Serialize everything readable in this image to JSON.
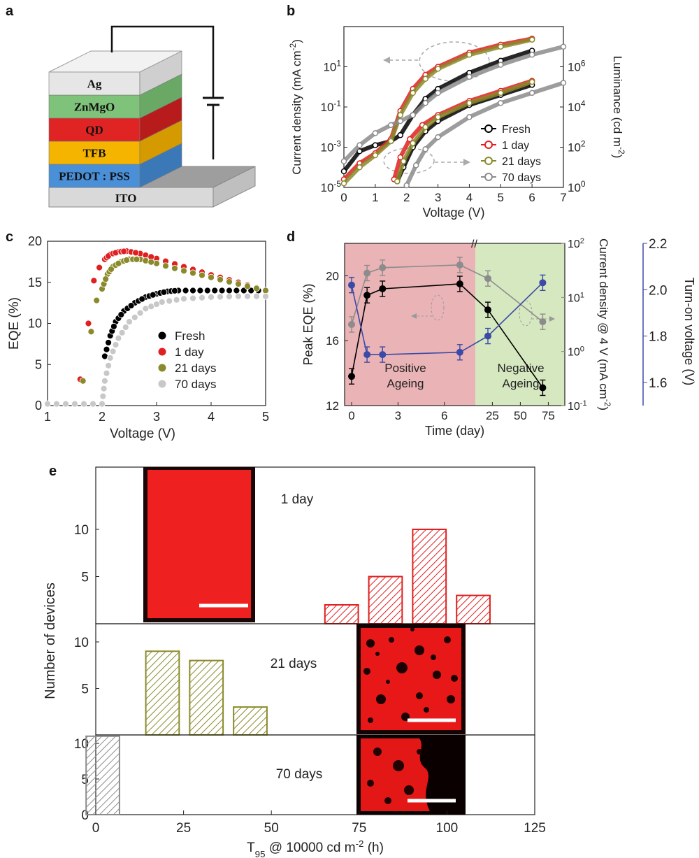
{
  "panels": {
    "a": "a",
    "b": "b",
    "c": "c",
    "d": "d",
    "e": "e"
  },
  "device_stack": {
    "layers": [
      {
        "name": "Ag",
        "color": "#e6e6e6",
        "side": "#cfcfcf",
        "top": "#f2f2f2"
      },
      {
        "name": "ZnMgO",
        "color": "#7fc27a",
        "side": "#6aa866"
      },
      {
        "name": "QD",
        "color": "#e02424",
        "side": "#b81b1b"
      },
      {
        "name": "TFB",
        "color": "#f5b400",
        "side": "#d49a00"
      },
      {
        "name": "PEDOT : PSS",
        "color": "#4a90d9",
        "side": "#3b78b8"
      },
      {
        "name": "ITO",
        "color": "#d9d9d9",
        "side": "#bfbfbf",
        "top": "#9e9e9e"
      }
    ]
  },
  "chart_data": [
    {
      "panel": "b",
      "type": "line",
      "xlabel": "Voltage (V)",
      "ylabel": "Current density (mA cm-2)",
      "y2label": "Luminance (cd m-2)",
      "xlim": [
        0,
        7
      ],
      "xticks": [
        "0",
        "1",
        "2",
        "3",
        "4",
        "5",
        "6",
        "7"
      ],
      "ylim_log10": [
        -5,
        3
      ],
      "yticks": [
        "10-5",
        "10-3",
        "10-1",
        "101"
      ],
      "y2ticks": [
        "100",
        "102",
        "104",
        "106"
      ],
      "colors": {
        "Fresh": "#000000",
        "1 day": "#e02020",
        "21 days": "#8a8a2a",
        "70 days": "#8c8c8c"
      },
      "series": [
        {
          "name": "Fresh",
          "kind": "current",
          "x": [
            0,
            0.5,
            1,
            1.5,
            1.8,
            2.2,
            2.6,
            3,
            4,
            5,
            6
          ],
          "log10y": [
            -4.2,
            -3.2,
            -2.9,
            -2.7,
            -2.4,
            -1.4,
            -0.6,
            -0.1,
            0.7,
            1.3,
            1.8
          ]
        },
        {
          "name": "1 day",
          "kind": "current",
          "x": [
            0,
            0.5,
            1,
            1.5,
            1.8,
            2.2,
            2.6,
            3,
            4,
            5,
            6
          ],
          "log10y": [
            -4.6,
            -3.8,
            -3.3,
            -2.6,
            -1.2,
            -0.1,
            0.6,
            1.0,
            1.7,
            2.1,
            2.4
          ]
        },
        {
          "name": "21 days",
          "kind": "current",
          "x": [
            0,
            0.5,
            1,
            1.5,
            1.8,
            2.2,
            2.6,
            3,
            4,
            5,
            6
          ],
          "log10y": [
            -4.8,
            -4.0,
            -3.4,
            -2.7,
            -1.4,
            -0.3,
            0.4,
            0.9,
            1.6,
            2.0,
            2.35
          ]
        },
        {
          "name": "70 days",
          "kind": "current",
          "x": [
            0,
            0.5,
            1,
            1.5,
            1.8,
            2.2,
            2.6,
            3,
            4,
            5,
            6,
            7
          ],
          "log10y": [
            -3.7,
            -2.9,
            -2.3,
            -1.9,
            -1.7,
            -1.4,
            -0.8,
            -0.3,
            0.5,
            1.1,
            1.6,
            2.0
          ]
        },
        {
          "name": "Fresh",
          "kind": "luminance",
          "x": [
            1.7,
            1.9,
            2.2,
            2.6,
            3,
            4,
            5,
            6
          ],
          "log10y": [
            -4.7,
            -4.0,
            -3.0,
            -2.2,
            -1.7,
            -0.9,
            -0.4,
            0.1
          ]
        },
        {
          "name": "1 day",
          "kind": "luminance",
          "x": [
            1.6,
            1.8,
            2.1,
            2.5,
            3,
            4,
            5,
            6
          ],
          "log10y": [
            -4.6,
            -3.5,
            -2.6,
            -1.9,
            -1.4,
            -0.7,
            -0.2,
            0.3
          ]
        },
        {
          "name": "21 days",
          "kind": "luminance",
          "x": [
            1.7,
            1.9,
            2.2,
            2.6,
            3,
            4,
            5,
            6
          ],
          "log10y": [
            -4.7,
            -3.7,
            -2.8,
            -2.0,
            -1.5,
            -0.8,
            -0.3,
            0.25
          ]
        },
        {
          "name": "70 days",
          "kind": "luminance",
          "x": [
            2.0,
            2.3,
            2.6,
            3,
            4,
            5,
            6,
            7
          ],
          "log10y": [
            -4.9,
            -3.9,
            -3.1,
            -2.5,
            -1.5,
            -0.8,
            -0.3,
            0.2
          ]
        }
      ],
      "legend": [
        "Fresh",
        "1 day",
        "21 days",
        "70 days"
      ],
      "legend_position": "bottom-right"
    },
    {
      "panel": "c",
      "type": "scatter",
      "xlabel": "Voltage  (V)",
      "ylabel": "EQE (%)",
      "xlim": [
        1,
        5
      ],
      "ylim": [
        0,
        20
      ],
      "xticks": [
        "1",
        "2",
        "3",
        "4",
        "5"
      ],
      "yticks": [
        "0",
        "5",
        "10",
        "15",
        "20"
      ],
      "legend": [
        "Fresh",
        "1 day",
        "21 days",
        "70 days"
      ],
      "legend_position": "bottom-right",
      "series": [
        {
          "name": "Fresh",
          "color": "#000000",
          "x": [
            2.05,
            2.15,
            2.25,
            2.4,
            2.6,
            2.8,
            3.0,
            3.2,
            3.4,
            3.8,
            4.2,
            4.6,
            5.0
          ],
          "y": [
            6.0,
            8.5,
            10.2,
            11.5,
            12.5,
            13.2,
            13.6,
            13.9,
            14.0,
            14.0,
            14.0,
            14.0,
            14.0
          ]
        },
        {
          "name": "1 day",
          "color": "#e02020",
          "x": [
            1.6,
            1.75,
            1.85,
            1.95,
            2.05,
            2.15,
            2.3,
            2.45,
            2.7,
            3.0,
            3.5,
            4.0,
            4.5,
            5.0
          ],
          "y": [
            3.2,
            10.0,
            15.2,
            16.8,
            17.8,
            18.4,
            18.7,
            18.8,
            18.5,
            17.9,
            16.9,
            15.9,
            15.0,
            14.0
          ]
        },
        {
          "name": "21 days",
          "color": "#8a8a2a",
          "x": [
            1.65,
            1.8,
            1.9,
            2.0,
            2.1,
            2.2,
            2.35,
            2.5,
            2.7,
            3.0,
            3.5,
            4.0,
            4.5,
            5.0
          ],
          "y": [
            3.0,
            9.0,
            12.8,
            14.2,
            16.0,
            16.9,
            17.5,
            17.8,
            17.8,
            17.3,
            16.4,
            15.6,
            14.8,
            14.0
          ]
        },
        {
          "name": "70 days",
          "color": "#c8c8c8",
          "x": [
            1.0,
            1.5,
            2.0,
            2.05,
            2.15,
            2.3,
            2.5,
            2.8,
            3.1,
            3.5,
            4.0,
            4.5,
            5.0
          ],
          "y": [
            0.2,
            0.2,
            0.2,
            3.0,
            5.8,
            8.2,
            10.2,
            11.8,
            12.6,
            13.0,
            13.2,
            13.3,
            13.3
          ]
        }
      ]
    },
    {
      "panel": "d",
      "type": "line",
      "xlabel": "Time (day)",
      "ylabel": "Peak EQE (%)",
      "y2label": "Current density @ 4 V (mA cm-2)",
      "y3label": "Turn-on voltage (V)",
      "xticks_left": [
        "0",
        "3",
        "6"
      ],
      "xticks_right": [
        "25",
        "50",
        "75"
      ],
      "yticks": [
        "12",
        "16",
        "20"
      ],
      "y2ticks": [
        "10-1",
        "100",
        "101",
        "102"
      ],
      "y3ticks": [
        "1.6",
        "1.8",
        "2.0",
        "2.2"
      ],
      "regions": [
        {
          "label": "Positive Ageing",
          "color": "#eab3b6"
        },
        {
          "label": "Negative Ageing",
          "color": "#d6e8c0"
        }
      ],
      "time_points": [
        0,
        1,
        2,
        7,
        21,
        70
      ],
      "series": [
        {
          "name": "Peak EQE",
          "color": "#000000",
          "values": [
            13.8,
            18.8,
            19.2,
            19.5,
            17.9,
            13.1
          ]
        },
        {
          "name": "Current density",
          "color": "#8c8c8c",
          "log10_values": [
            0.5,
            1.45,
            1.55,
            1.6,
            1.35,
            0.55
          ]
        },
        {
          "name": "Turn-on voltage",
          "color": "#3a4aa6",
          "values": [
            2.02,
            1.72,
            1.72,
            1.73,
            1.8,
            2.03
          ]
        }
      ]
    },
    {
      "panel": "e",
      "type": "bar",
      "xlabel": "T95 @ 10000 cd m-2 (h)",
      "ylabel": "Number of devices",
      "xlim": [
        0,
        125
      ],
      "xticks": [
        "0",
        "25",
        "50",
        "75",
        "100",
        "125"
      ],
      "yticks": [
        "0",
        "5",
        "10"
      ],
      "subplots": [
        {
          "label": "1 day",
          "color": "#e02020",
          "bars": [
            {
              "x": 70,
              "count": 2
            },
            {
              "x": 82.5,
              "count": 5
            },
            {
              "x": 95,
              "count": 10
            },
            {
              "x": 107.5,
              "count": 3
            }
          ]
        },
        {
          "label": "21 days",
          "color": "#8a8a2a",
          "bars": [
            {
              "x": 19,
              "count": 9
            },
            {
              "x": 31.5,
              "count": 8
            },
            {
              "x": 44,
              "count": 3
            }
          ]
        },
        {
          "label": "70 days",
          "color": "#8c8c8c",
          "bars": [
            {
              "x": 2,
              "count": 11
            }
          ]
        }
      ]
    }
  ]
}
